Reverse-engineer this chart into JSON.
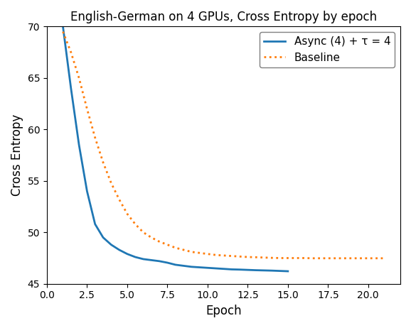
{
  "title": "English-German on 4 GPUs, Cross Entropy by epoch",
  "xlabel": "Epoch",
  "ylabel": "Cross Entropy",
  "xlim": [
    0.0,
    22.0
  ],
  "ylim": [
    45,
    70
  ],
  "yticks": [
    45,
    50,
    55,
    60,
    65,
    70
  ],
  "xticks": [
    0.0,
    2.5,
    5.0,
    7.5,
    10.0,
    12.5,
    15.0,
    17.5,
    20.0
  ],
  "async_label": "Async (4) + τ = 4",
  "baseline_label": "Baseline",
  "async_color": "#1f77b4",
  "baseline_color": "#ff7f0e",
  "async_x": [
    1.0,
    1.5,
    2.0,
    2.5,
    3.0,
    3.5,
    4.0,
    4.5,
    5.0,
    5.5,
    6.0,
    6.5,
    7.0,
    7.5,
    8.0,
    8.5,
    9.0,
    9.5,
    10.0,
    10.5,
    11.0,
    11.5,
    12.0,
    12.5,
    13.0,
    13.5,
    14.0,
    14.5,
    15.0
  ],
  "async_y": [
    70.0,
    64.0,
    58.5,
    54.0,
    50.8,
    49.5,
    48.8,
    48.3,
    47.9,
    47.6,
    47.4,
    47.3,
    47.2,
    47.05,
    46.85,
    46.75,
    46.65,
    46.6,
    46.55,
    46.5,
    46.45,
    46.4,
    46.38,
    46.35,
    46.32,
    46.3,
    46.28,
    46.25,
    46.22
  ],
  "baseline_x": [
    1.0,
    1.5,
    2.0,
    2.5,
    3.0,
    3.5,
    4.0,
    4.5,
    5.0,
    5.5,
    6.0,
    6.5,
    7.0,
    7.5,
    8.0,
    8.5,
    9.0,
    9.5,
    10.0,
    10.5,
    11.0,
    11.5,
    12.0,
    12.5,
    13.0,
    13.5,
    14.0,
    14.5,
    15.0,
    15.5,
    16.0,
    16.5,
    17.0,
    17.5,
    18.0,
    18.5,
    19.0,
    19.5,
    20.0,
    20.5,
    21.0
  ],
  "baseline_y": [
    69.5,
    67.5,
    65.0,
    62.0,
    59.2,
    56.8,
    54.8,
    53.2,
    51.8,
    50.8,
    50.0,
    49.5,
    49.1,
    48.8,
    48.5,
    48.3,
    48.1,
    48.0,
    47.9,
    47.8,
    47.75,
    47.7,
    47.65,
    47.6,
    47.58,
    47.55,
    47.52,
    47.5,
    47.5,
    47.5,
    47.5,
    47.48,
    47.48,
    47.48,
    47.48,
    47.48,
    47.48,
    47.48,
    47.48,
    47.48,
    47.48
  ]
}
